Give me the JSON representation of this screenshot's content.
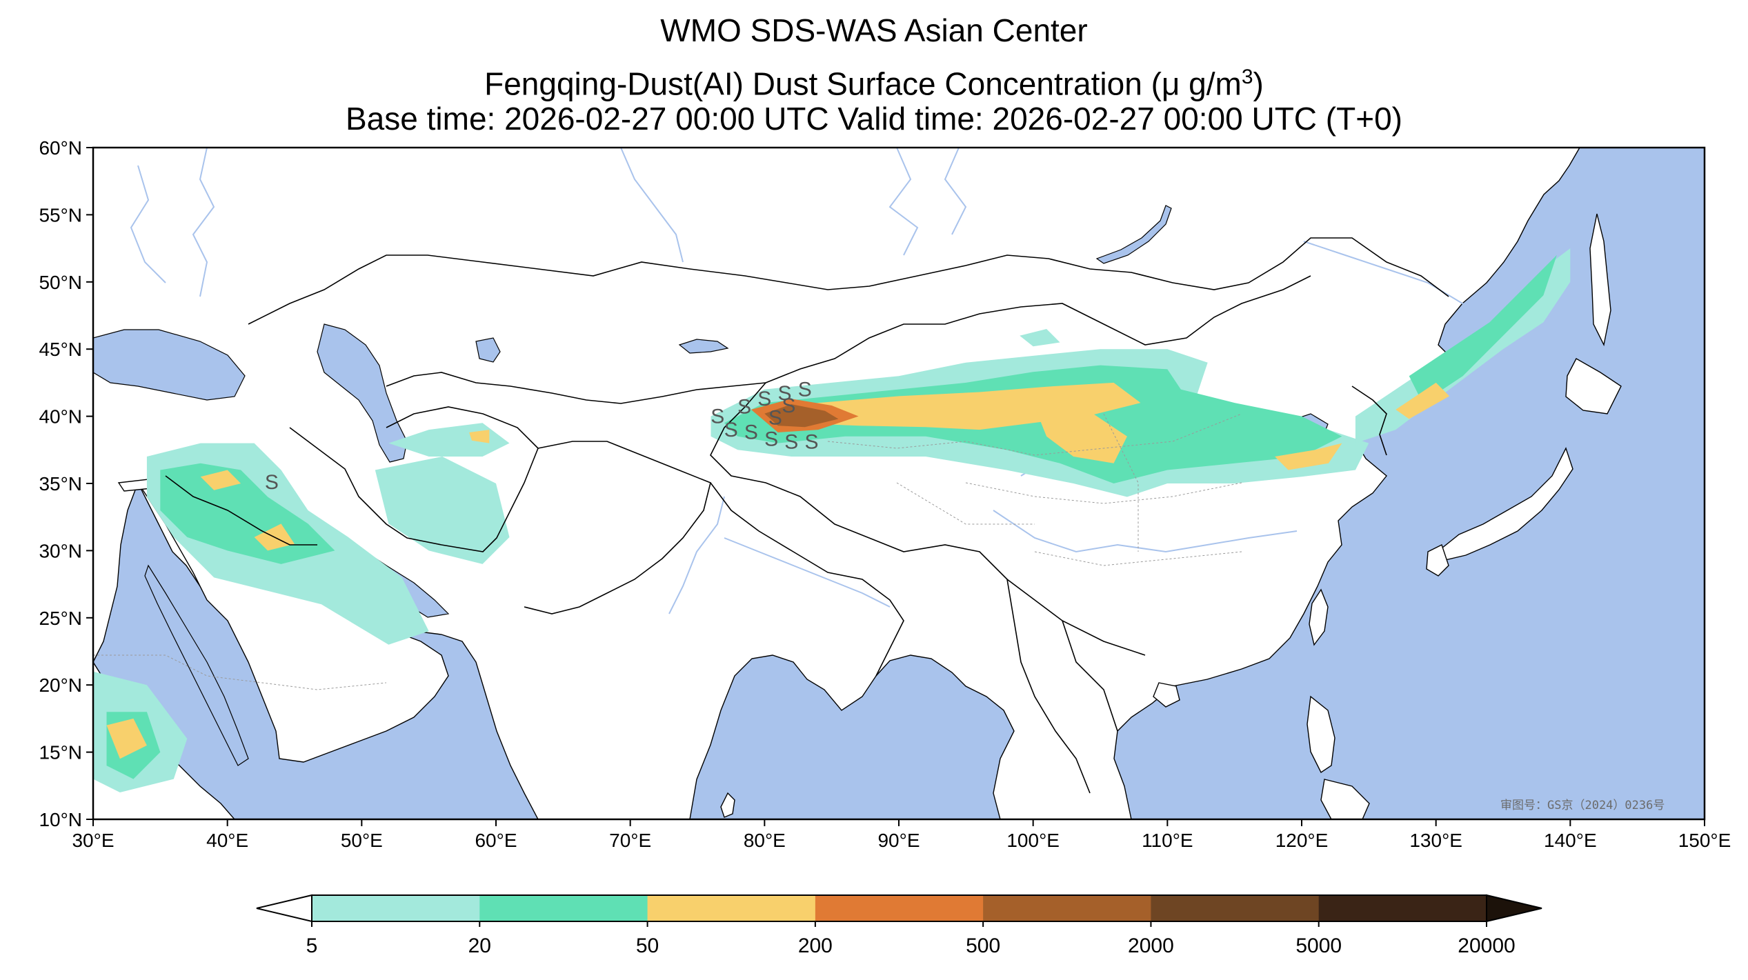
{
  "header": {
    "title_line1": "WMO SDS-WAS Asian Center",
    "title_line2_prefix": "Fengqing-Dust(AI) Dust Surface Concentration (μ g/m",
    "title_line2_sup": "3",
    "title_line2_suffix": ")",
    "title_line3": "Base time: 2026-02-27 00:00 UTC Valid time: 2026-02-27 00:00 UTC (T+0)"
  },
  "map": {
    "lon_range": [
      30,
      150
    ],
    "lat_range": [
      10,
      60
    ],
    "lon_ticks": [
      "30°E",
      "40°E",
      "50°E",
      "60°E",
      "70°E",
      "80°E",
      "90°E",
      "100°E",
      "110°E",
      "120°E",
      "130°E",
      "140°E",
      "150°E"
    ],
    "lat_ticks": [
      "60°N",
      "55°N",
      "50°N",
      "45°N",
      "40°N",
      "35°N",
      "30°N",
      "25°N",
      "20°N",
      "15°N",
      "10°N"
    ],
    "ocean_color": "#a9c3ec",
    "land_color": "#ffffff",
    "river_color": "#a9c3ec",
    "approval_stamp": "审图号：GS京（2024）0236号",
    "storm_marker": "S"
  },
  "colorbar": {
    "levels": [
      "5",
      "20",
      "50",
      "200",
      "500",
      "2000",
      "5000",
      "20000"
    ],
    "colors": [
      "#a3e9dc",
      "#5fe0b4",
      "#f8d06c",
      "#e07a34",
      "#a5602a",
      "#6e4523",
      "#3a2416"
    ],
    "under_color": "#ffffff",
    "over_color": "#1c120a"
  }
}
